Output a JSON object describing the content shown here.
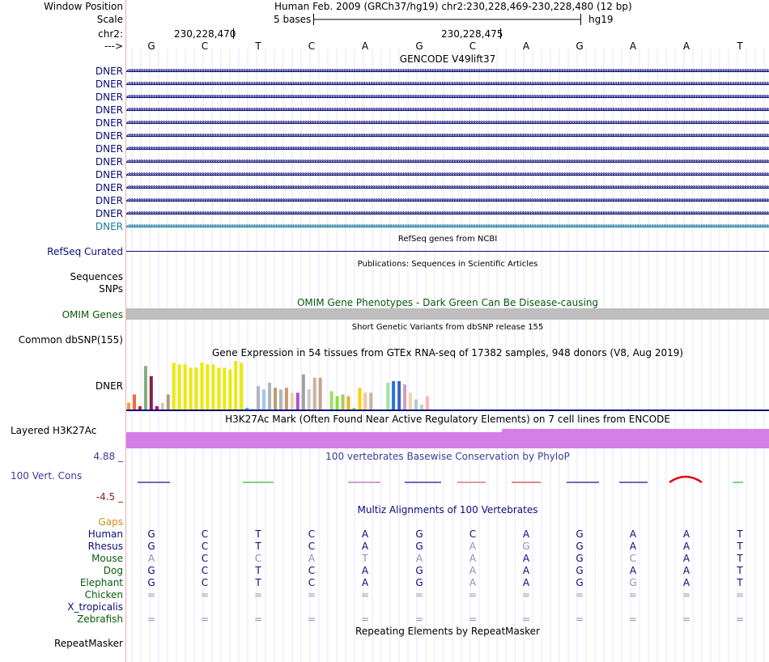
{
  "header": {
    "window_position_label": "Window Position",
    "window_position_value": "Human Feb. 2009 (GRCh37/hg19)   chr2:230,228,469-230,228,480 (12 bp)",
    "scale_label": "Scale",
    "scale_value": "5 bases",
    "assembly": "hg19",
    "chrom_label": "chr2:",
    "coord1": "230,228,470",
    "coord2": "230,228,475",
    "strand_label": "--->"
  },
  "bases": [
    "G",
    "C",
    "T",
    "C",
    "A",
    "G",
    "C",
    "A",
    "G",
    "A",
    "A",
    "T"
  ],
  "gencode": {
    "title": "GENCODE V49lift37",
    "genes": [
      "DNER",
      "DNER",
      "DNER",
      "DNER",
      "DNER",
      "DNER",
      "DNER",
      "DNER",
      "DNER",
      "DNER",
      "DNER",
      "DNER",
      "DNER"
    ],
    "color": "#0c0c78",
    "last_color": "#1a7a9a"
  },
  "refseq": {
    "title": "RefSeq genes from NCBI",
    "label": "RefSeq Curated"
  },
  "publications": {
    "title": "Publications: Sequences in Scientific Articles",
    "label1": "Sequences",
    "label2": "SNPs"
  },
  "omim": {
    "title": "OMIM Gene Phenotypes - Dark Green Can Be Disease-causing",
    "label": "OMIM Genes",
    "color": "#0a5a0a"
  },
  "dbsnp": {
    "title": "Short Genetic Variants from dbSNP release 155",
    "label": "Common dbSNP(155)"
  },
  "gtex": {
    "title": "Gene Expression in 54 tissues from GTEx RNA-seq of 17382 samples, 948 donors (V8, Aug 2019)",
    "label": "DNER"
  },
  "h3k27ac": {
    "title": "H3K27Ac Mark (Often Found Near Active Regulatory Elements) on 7 cell lines from ENCODE",
    "label": "Layered H3K27Ac",
    "color": "#d47ee8"
  },
  "phylop": {
    "title": "100 vertebrates Basewise Conservation by PhyloP",
    "max": "4.88 _",
    "min": "-4.5 _",
    "label": "100 Vert. Cons",
    "color": "#3d3d99"
  },
  "multiz": {
    "title": "Multiz Alignments of 100 Vertebrates",
    "gaps_label": "Gaps",
    "species": [
      {
        "name": "Human",
        "color": "#0c0c78",
        "bases": [
          "G",
          "C",
          "T",
          "C",
          "A",
          "G",
          "C",
          "A",
          "G",
          "A",
          "A",
          "T"
        ],
        "dim": []
      },
      {
        "name": "Rhesus",
        "color": "#0c0c78",
        "bases": [
          "G",
          "C",
          "T",
          "C",
          "A",
          "G",
          "A",
          "G",
          "G",
          "A",
          "A",
          "T"
        ],
        "dim": [
          6,
          7
        ]
      },
      {
        "name": "Mouse",
        "color": "#0a5a0a",
        "bases": [
          "A",
          "C",
          "C",
          "A",
          "T",
          "A",
          "A",
          "A",
          "G",
          "C",
          "A",
          "T"
        ],
        "dim": [
          0,
          2,
          3,
          4,
          5,
          6,
          9
        ]
      },
      {
        "name": "Dog",
        "color": "#0a5a0a",
        "bases": [
          "G",
          "C",
          "T",
          "C",
          "A",
          "G",
          "A",
          "A",
          "G",
          "A",
          "A",
          "T"
        ],
        "dim": [
          6
        ]
      },
      {
        "name": "Elephant",
        "color": "#0a5a0a",
        "bases": [
          "G",
          "C",
          "T",
          "C",
          "A",
          "G",
          "A",
          "A",
          "G",
          "G",
          "A",
          "T"
        ],
        "dim": [
          6,
          9
        ]
      },
      {
        "name": "Chicken",
        "color": "#0a5a0a",
        "bases": [
          "=",
          "=",
          "=",
          "=",
          "=",
          "=",
          "=",
          "=",
          "=",
          "=",
          "=",
          "="
        ],
        "dim": [
          0,
          1,
          2,
          3,
          4,
          5,
          6,
          7,
          8,
          9,
          10,
          11
        ]
      },
      {
        "name": "X_tropicalis",
        "color": "#0c0c78",
        "bases": [],
        "dim": []
      },
      {
        "name": "Zebrafish",
        "color": "#0a5a0a",
        "bases": [
          "=",
          "=",
          "=",
          "=",
          "=",
          "=",
          "=",
          "=",
          "=",
          "=",
          "=",
          "="
        ],
        "dim": [
          0,
          1,
          2,
          3,
          4,
          5,
          6,
          7,
          8,
          9,
          10,
          11
        ]
      }
    ]
  },
  "repeatmasker": {
    "title": "Repeating Elements by RepeatMasker",
    "label": "RepeatMasker"
  },
  "chart_data": {
    "type": "bar",
    "title": "Gene Expression in 54 tissues from GTEx RNA-seq of 17382 samples, 948 donors (V8, Aug 2019)",
    "xlabel": "",
    "ylabel": "",
    "values": [
      4,
      9,
      2,
      26,
      20,
      2,
      4,
      9,
      28,
      27,
      27,
      25,
      25,
      28,
      27,
      27,
      25,
      25,
      24,
      29,
      28,
      1,
      1,
      14,
      12,
      16,
      13,
      12,
      13,
      10,
      10,
      21,
      12,
      19,
      19,
      0,
      11,
      8,
      9,
      8,
      1,
      13,
      10,
      10,
      0,
      0,
      16,
      17,
      17,
      15,
      10,
      6,
      3,
      8
    ],
    "colors": [
      "#f59a3f",
      "#f56a3a",
      "#ce1e34",
      "#7fae7d",
      "#8b1a4b",
      "#c80050",
      "#d4c9b4",
      "#b09980",
      "#eaea0a",
      "#eaea0a",
      "#eaea0a",
      "#eaea0a",
      "#eaea0a",
      "#eaea0a",
      "#eaea0a",
      "#eaea0a",
      "#eaea0a",
      "#eaea0a",
      "#eaea0a",
      "#eaea0a",
      "#eaea0a",
      "#13c8c8",
      "#e6e6e6",
      "#b4b4c8",
      "#a0c8e6",
      "#b4b4b4",
      "#be9a73",
      "#b4b4b4",
      "#c89a6e",
      "#e6d2ad",
      "#b450c8",
      "#a0a0a0",
      "#c8c8c8",
      "#c8b49b",
      "#c8a08c",
      "#c8c8c8",
      "#a0dc6e",
      "#8cdc3c",
      "#b4c85a",
      "#e6b432",
      "#7ddc3c",
      "#ffd200",
      "#f0c8a0",
      "#c8b4a0",
      "#aaaaaa",
      "#aaaaaa",
      "#a0e6a0",
      "#2a72d8",
      "#3b63c8",
      "#c8a0c8",
      "#ffd0a0",
      "#b4c8c8",
      "#b4dcb4",
      "#ffb4b4"
    ],
    "ylim": [
      0,
      30
    ]
  }
}
